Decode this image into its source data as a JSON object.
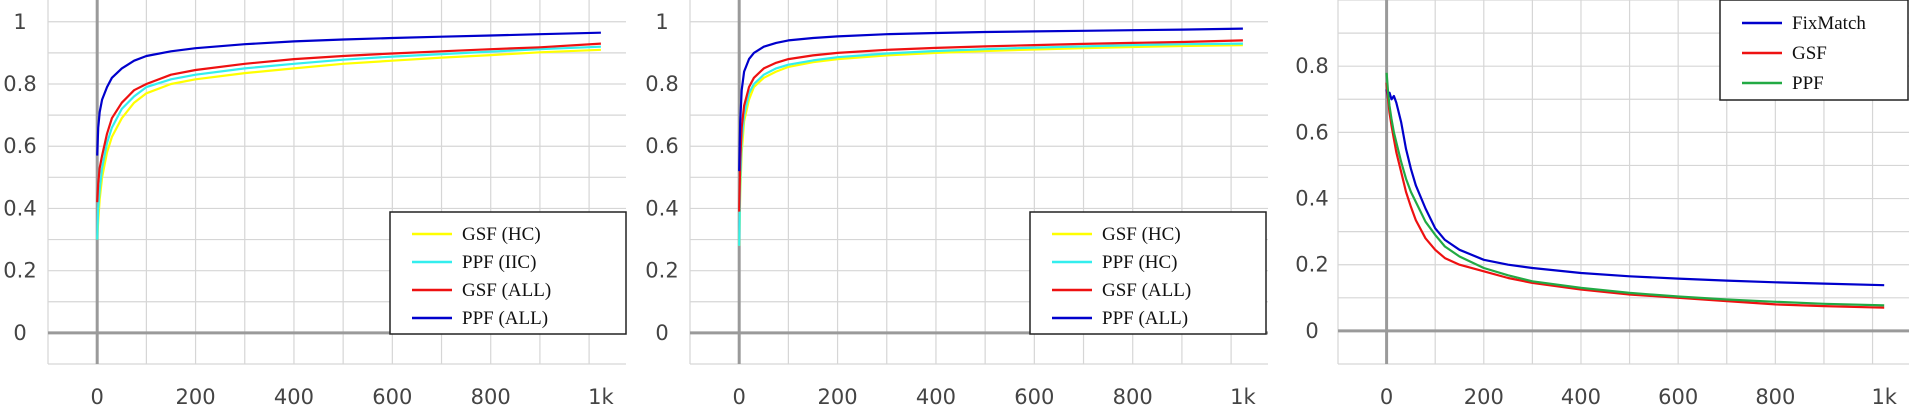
{
  "chart_data": [
    {
      "type": "line",
      "xlim": [
        -100,
        1075
      ],
      "ylim": [
        -0.1,
        1.07
      ],
      "x_ticks": [
        0,
        200,
        400,
        600,
        800,
        1024
      ],
      "x_tick_labels": [
        "0",
        "200",
        "400",
        "600",
        "800",
        "1k"
      ],
      "y_ticks": [
        0,
        0.2,
        0.4,
        0.6,
        0.8,
        1
      ],
      "y_tick_labels": [
        "0",
        "0.2",
        "0.4",
        "0.6",
        "0.8",
        "1"
      ],
      "grid": true,
      "legend_position": "bottom-right",
      "series": [
        {
          "name": "GSF (HC)",
          "color": "#ffff00",
          "x": [
            0,
            2,
            5,
            10,
            20,
            30,
            50,
            75,
            100,
            150,
            200,
            300,
            400,
            500,
            600,
            700,
            800,
            900,
            1024
          ],
          "y": [
            0.3,
            0.36,
            0.43,
            0.5,
            0.58,
            0.63,
            0.69,
            0.74,
            0.77,
            0.8,
            0.815,
            0.835,
            0.85,
            0.865,
            0.875,
            0.885,
            0.893,
            0.902,
            0.91
          ]
        },
        {
          "name": "PPF (IIC)",
          "color": "#33eeee",
          "x": [
            0,
            2,
            5,
            10,
            20,
            30,
            50,
            75,
            100,
            150,
            200,
            300,
            400,
            500,
            600,
            700,
            800,
            900,
            1024
          ],
          "y": [
            0.3,
            0.4,
            0.46,
            0.53,
            0.61,
            0.66,
            0.72,
            0.76,
            0.79,
            0.815,
            0.83,
            0.85,
            0.865,
            0.878,
            0.888,
            0.896,
            0.904,
            0.912,
            0.92
          ]
        },
        {
          "name": "GSF (ALL)",
          "color": "#ee1111",
          "x": [
            0,
            2,
            5,
            10,
            20,
            30,
            50,
            75,
            100,
            150,
            200,
            300,
            400,
            500,
            600,
            700,
            800,
            900,
            1024
          ],
          "y": [
            0.42,
            0.48,
            0.53,
            0.57,
            0.64,
            0.69,
            0.74,
            0.78,
            0.8,
            0.83,
            0.845,
            0.865,
            0.88,
            0.89,
            0.898,
            0.905,
            0.912,
            0.918,
            0.93
          ]
        },
        {
          "name": "PPF (ALL)",
          "color": "#0000cc",
          "x": [
            0,
            2,
            5,
            10,
            20,
            30,
            50,
            75,
            100,
            150,
            200,
            300,
            400,
            500,
            600,
            700,
            800,
            900,
            1024
          ],
          "y": [
            0.57,
            0.66,
            0.71,
            0.75,
            0.79,
            0.82,
            0.85,
            0.875,
            0.89,
            0.905,
            0.915,
            0.928,
            0.937,
            0.943,
            0.948,
            0.952,
            0.956,
            0.96,
            0.965
          ]
        }
      ]
    },
    {
      "type": "line",
      "xlim": [
        -100,
        1075
      ],
      "ylim": [
        -0.1,
        1.07
      ],
      "x_ticks": [
        0,
        200,
        400,
        600,
        800,
        1024
      ],
      "x_tick_labels": [
        "0",
        "200",
        "400",
        "600",
        "800",
        "1k"
      ],
      "y_ticks": [
        0,
        0.2,
        0.4,
        0.6,
        0.8,
        1
      ],
      "y_tick_labels": [
        "0",
        "0.2",
        "0.4",
        "0.6",
        "0.8",
        "1"
      ],
      "grid": true,
      "legend_position": "bottom-right",
      "series": [
        {
          "name": "GSF (HC)",
          "color": "#ffff00",
          "x": [
            0,
            2,
            5,
            10,
            20,
            30,
            50,
            75,
            100,
            150,
            200,
            300,
            400,
            500,
            600,
            700,
            800,
            900,
            1024
          ],
          "y": [
            0.28,
            0.45,
            0.58,
            0.68,
            0.75,
            0.79,
            0.82,
            0.84,
            0.855,
            0.87,
            0.88,
            0.892,
            0.9,
            0.906,
            0.911,
            0.915,
            0.919,
            0.922,
            0.925
          ]
        },
        {
          "name": "PPF (HC)",
          "color": "#33eeee",
          "x": [
            0,
            2,
            5,
            10,
            20,
            30,
            50,
            75,
            100,
            150,
            200,
            300,
            400,
            500,
            600,
            700,
            800,
            900,
            1024
          ],
          "y": [
            0.28,
            0.48,
            0.62,
            0.7,
            0.77,
            0.8,
            0.83,
            0.85,
            0.862,
            0.876,
            0.886,
            0.898,
            0.906,
            0.912,
            0.917,
            0.921,
            0.925,
            0.928,
            0.93
          ]
        },
        {
          "name": "GSF (ALL)",
          "color": "#ee1111",
          "x": [
            0,
            2,
            5,
            10,
            20,
            30,
            50,
            75,
            100,
            150,
            200,
            300,
            400,
            500,
            600,
            700,
            800,
            900,
            1024
          ],
          "y": [
            0.39,
            0.55,
            0.66,
            0.73,
            0.79,
            0.82,
            0.85,
            0.868,
            0.88,
            0.892,
            0.9,
            0.91,
            0.916,
            0.921,
            0.925,
            0.929,
            0.932,
            0.935,
            0.94
          ]
        },
        {
          "name": "PPF (ALL)",
          "color": "#0000cc",
          "x": [
            0,
            2,
            5,
            10,
            20,
            30,
            50,
            75,
            100,
            150,
            200,
            300,
            400,
            500,
            600,
            700,
            800,
            900,
            1024
          ],
          "y": [
            0.52,
            0.68,
            0.78,
            0.84,
            0.88,
            0.9,
            0.92,
            0.932,
            0.94,
            0.948,
            0.953,
            0.96,
            0.964,
            0.967,
            0.969,
            0.971,
            0.973,
            0.975,
            0.978
          ]
        }
      ]
    },
    {
      "type": "line",
      "xlim": [
        -100,
        1075
      ],
      "ylim": [
        -0.1,
        1.0
      ],
      "x_ticks": [
        0,
        200,
        400,
        600,
        800,
        1024
      ],
      "x_tick_labels": [
        "0",
        "200",
        "400",
        "600",
        "800",
        "1k"
      ],
      "y_ticks": [
        0,
        0.2,
        0.4,
        0.6,
        0.8
      ],
      "y_tick_labels": [
        "0",
        "0.2",
        "0.4",
        "0.6",
        "0.8"
      ],
      "grid": true,
      "legend_position": "top-right",
      "series": [
        {
          "name": "FixMatch",
          "color": "#0000cc",
          "x": [
            0,
            3,
            6,
            10,
            15,
            20,
            30,
            40,
            50,
            60,
            80,
            100,
            120,
            150,
            200,
            250,
            300,
            400,
            500,
            600,
            700,
            800,
            900,
            1024
          ],
          "y": [
            0.73,
            0.7,
            0.72,
            0.7,
            0.71,
            0.69,
            0.63,
            0.55,
            0.49,
            0.44,
            0.37,
            0.31,
            0.275,
            0.245,
            0.215,
            0.2,
            0.19,
            0.175,
            0.165,
            0.158,
            0.152,
            0.147,
            0.143,
            0.138
          ]
        },
        {
          "name": "GSF",
          "color": "#ee1111",
          "x": [
            0,
            3,
            6,
            10,
            15,
            20,
            30,
            40,
            50,
            60,
            80,
            100,
            120,
            150,
            200,
            250,
            300,
            400,
            500,
            600,
            700,
            800,
            900,
            1024
          ],
          "y": [
            0.75,
            0.7,
            0.66,
            0.62,
            0.58,
            0.54,
            0.48,
            0.42,
            0.375,
            0.335,
            0.28,
            0.245,
            0.22,
            0.2,
            0.18,
            0.16,
            0.145,
            0.125,
            0.11,
            0.1,
            0.09,
            0.08,
            0.075,
            0.07
          ]
        },
        {
          "name": "PPF",
          "color": "#22aa44",
          "x": [
            0,
            3,
            6,
            10,
            15,
            20,
            30,
            40,
            50,
            60,
            80,
            100,
            120,
            150,
            200,
            250,
            300,
            400,
            500,
            600,
            700,
            800,
            900,
            1024
          ],
          "y": [
            0.78,
            0.72,
            0.68,
            0.64,
            0.6,
            0.57,
            0.51,
            0.46,
            0.42,
            0.39,
            0.33,
            0.29,
            0.255,
            0.225,
            0.19,
            0.168,
            0.15,
            0.13,
            0.115,
            0.104,
            0.095,
            0.088,
            0.082,
            0.077
          ]
        }
      ]
    }
  ]
}
